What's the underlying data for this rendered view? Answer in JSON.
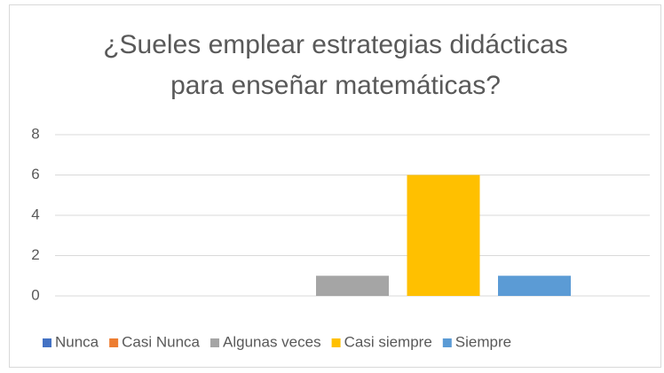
{
  "chart_data": {
    "type": "bar",
    "title": [
      "¿Sueles emplear estrategias didácticas",
      "para enseñar matemáticas?"
    ],
    "series": [
      {
        "name": "Nunca",
        "color": "#4472c4",
        "values": [
          0
        ]
      },
      {
        "name": "Casi Nunca",
        "color": "#ed7d31",
        "values": [
          0
        ]
      },
      {
        "name": "Algunas veces",
        "color": "#a5a5a5",
        "values": [
          1
        ]
      },
      {
        "name": "Casi siempre",
        "color": "#ffc000",
        "values": [
          6
        ]
      },
      {
        "name": "Siempre",
        "color": "#5b9bd5",
        "values": [
          1
        ]
      }
    ],
    "ylim": [
      0,
      8
    ],
    "yticks": [
      0,
      2,
      4,
      6,
      8
    ],
    "grid": true,
    "legend": "bottom"
  }
}
